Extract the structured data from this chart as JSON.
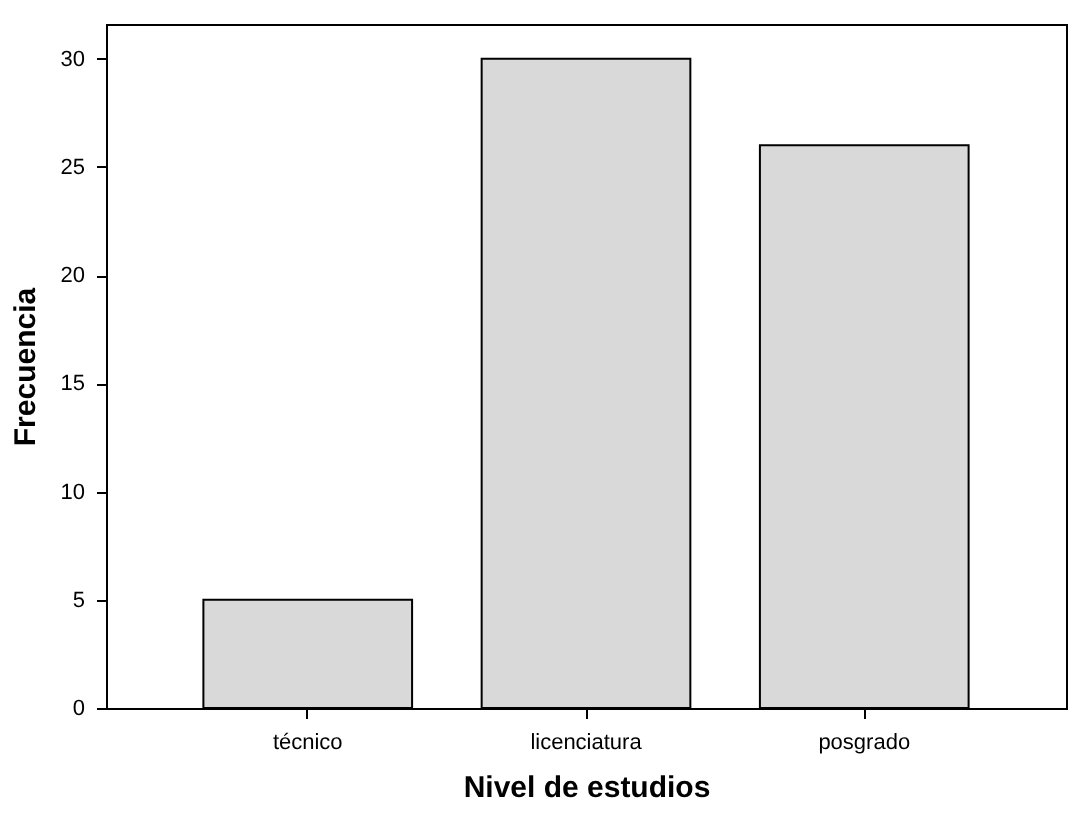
{
  "chart_data": {
    "type": "bar",
    "xlabel": "Nivel de estudios",
    "ylabel": "Frecuencia",
    "categories": [
      "técnico",
      "licenciatura",
      "posgrado"
    ],
    "values": [
      5,
      30,
      26
    ],
    "color": "#d9d9d9",
    "ylim": [
      0,
      31.6
    ],
    "yticks": [
      0,
      5,
      10,
      15,
      20,
      25,
      30
    ],
    "grid": false
  }
}
